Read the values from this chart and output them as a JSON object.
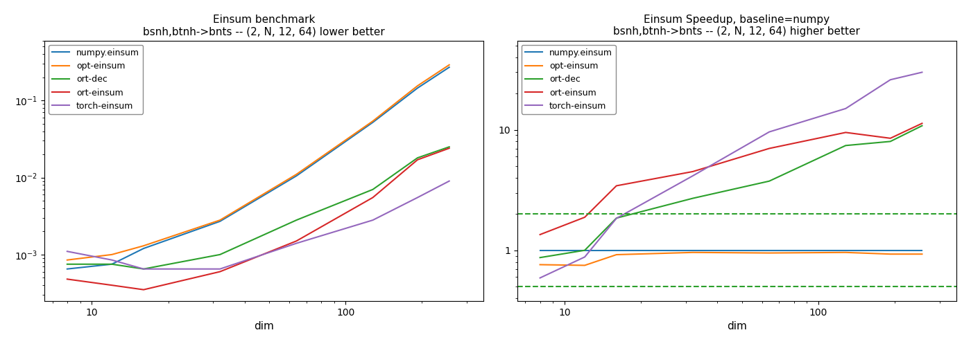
{
  "title1": "Einsum benchmark\nbsnh,btnh->bnts -- (2, N, 12, 64) lower better",
  "title2": "Einsum Speedup, baseline=numpy\nbsnh,btnh->bnts -- (2, N, 12, 64) higher better",
  "xlabel": "dim",
  "dims": [
    8,
    12,
    16,
    32,
    64,
    128,
    192,
    256
  ],
  "bench": {
    "numpy.einsum": [
      0.00065,
      0.00075,
      0.0012,
      0.0027,
      0.0105,
      0.052,
      0.145,
      0.27
    ],
    "opt-einsum": [
      0.00085,
      0.001,
      0.0013,
      0.0028,
      0.011,
      0.054,
      0.155,
      0.29
    ],
    "ort-dec": [
      0.00075,
      0.00075,
      0.00065,
      0.001,
      0.0028,
      0.007,
      0.018,
      0.025
    ],
    "ort-einsum": [
      0.00048,
      0.0004,
      0.00035,
      0.0006,
      0.0015,
      0.0055,
      0.017,
      0.024
    ],
    "torch-einsum": [
      0.0011,
      0.00085,
      0.00065,
      0.00065,
      0.0014,
      0.0028,
      0.0055,
      0.009
    ]
  },
  "speedup": {
    "numpy.einsum": [
      1.0,
      1.0,
      1.0,
      1.0,
      1.0,
      1.0,
      1.0,
      1.0
    ],
    "opt-einsum": [
      0.76,
      0.75,
      0.92,
      0.96,
      0.95,
      0.96,
      0.93,
      0.93
    ],
    "ort-dec": [
      0.87,
      1.0,
      1.85,
      2.7,
      3.75,
      7.4,
      8.0,
      10.8
    ],
    "ort-einsum": [
      1.35,
      1.88,
      3.43,
      4.5,
      7.0,
      9.5,
      8.5,
      11.3
    ],
    "torch-einsum": [
      0.59,
      0.88,
      1.84,
      4.15,
      9.6,
      15.0,
      26.0,
      30.0
    ]
  },
  "dashed_lines": [
    0.5,
    2.0
  ],
  "colors": {
    "numpy.einsum": "#1f77b4",
    "opt-einsum": "#ff7f0e",
    "ort-dec": "#2ca02c",
    "ort-einsum": "#d62728",
    "torch-einsum": "#9467bd"
  },
  "legend_order": [
    "numpy.einsum",
    "opt-einsum",
    "ort-dec",
    "ort-einsum",
    "torch-einsum"
  ]
}
